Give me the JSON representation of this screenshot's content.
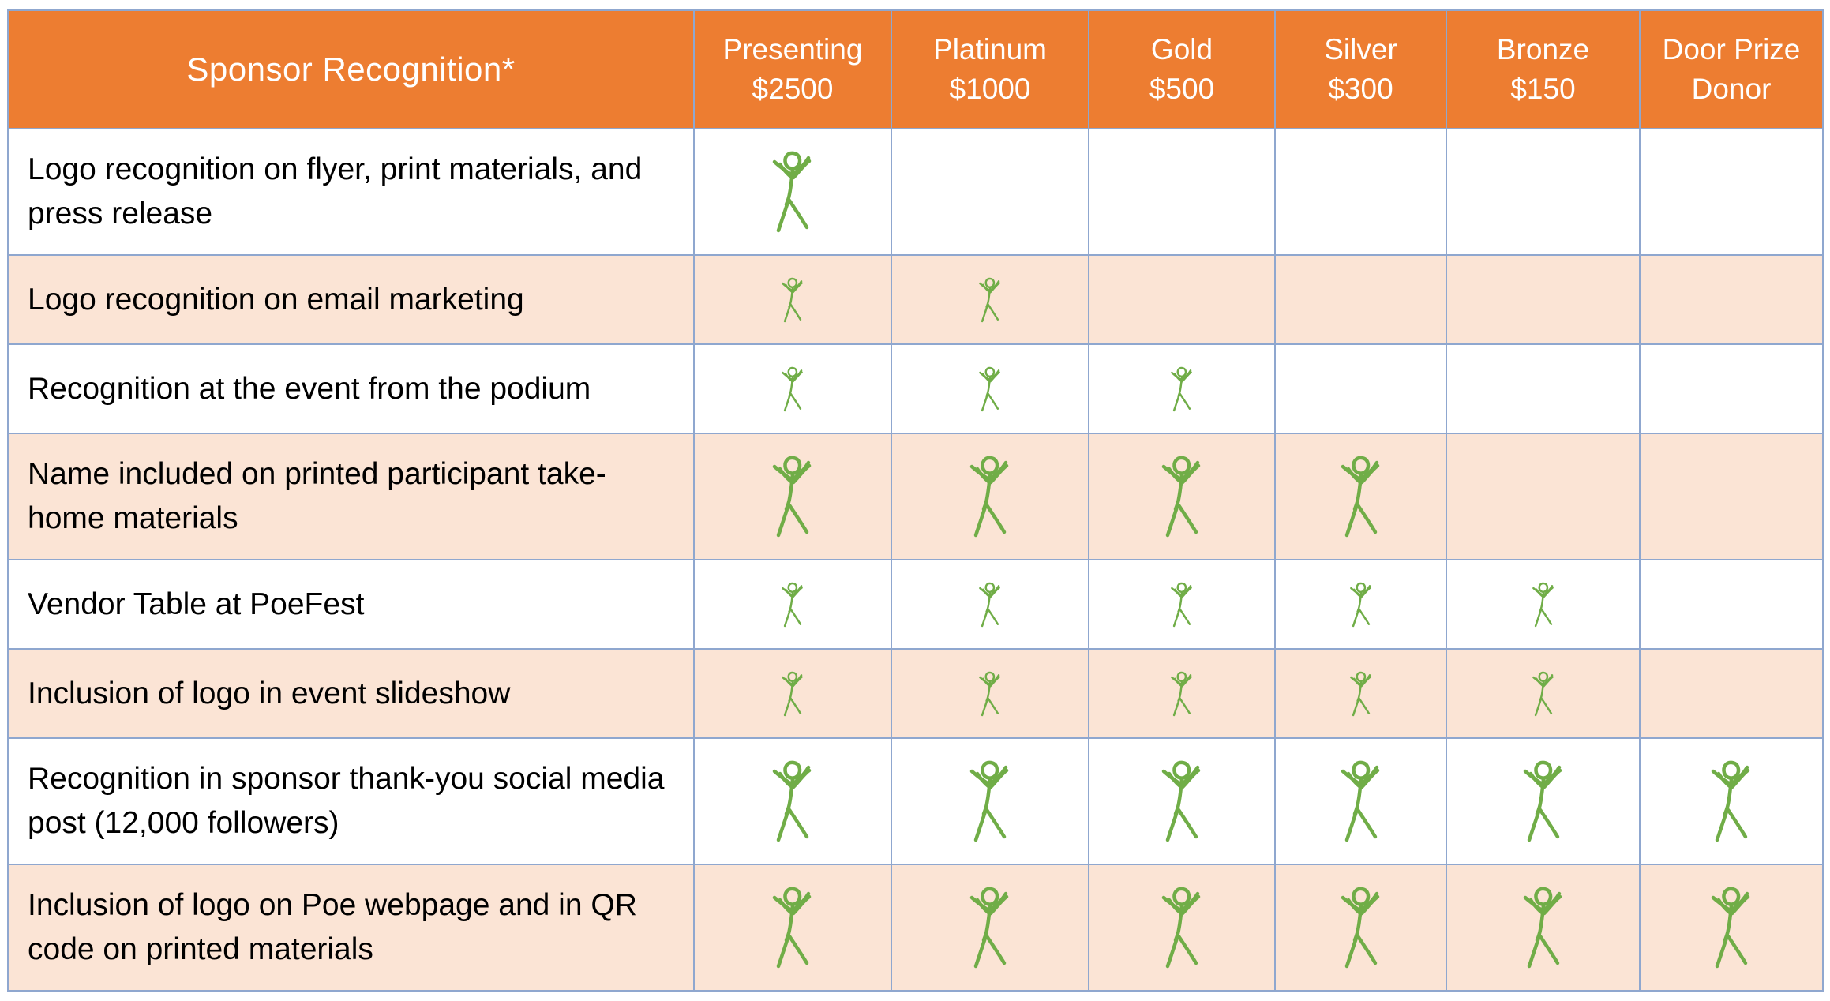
{
  "table": {
    "title": "Sponsor Recognition*",
    "tiers": [
      {
        "line1": "Presenting",
        "line2": "$2500"
      },
      {
        "line1": "Platinum",
        "line2": "$1000"
      },
      {
        "line1": "Gold",
        "line2": "$500"
      },
      {
        "line1": "Silver",
        "line2": "$300"
      },
      {
        "line1": "Bronze",
        "line2": "$150"
      },
      {
        "line1": "Door Prize",
        "line2": "Donor"
      }
    ],
    "rows": [
      {
        "label": "Logo recognition on flyer, print materials, and press release",
        "included": [
          true,
          false,
          false,
          false,
          false,
          false
        ],
        "mark_size": "big"
      },
      {
        "label": "Logo recognition on email marketing",
        "included": [
          true,
          true,
          false,
          false,
          false,
          false
        ],
        "mark_size": "small"
      },
      {
        "label": "Recognition at the event from the podium",
        "included": [
          true,
          true,
          true,
          false,
          false,
          false
        ],
        "mark_size": "small"
      },
      {
        "label": "Name included on printed participant take-home materials",
        "included": [
          true,
          true,
          true,
          true,
          false,
          false
        ],
        "mark_size": "big"
      },
      {
        "label": "Vendor Table at PoeFest",
        "included": [
          true,
          true,
          true,
          true,
          true,
          false
        ],
        "mark_size": "small"
      },
      {
        "label": "Inclusion of logo in event slideshow",
        "included": [
          true,
          true,
          true,
          true,
          true,
          false
        ],
        "mark_size": "small"
      },
      {
        "label": "Recognition in sponsor thank-you social media post (12,000 followers)",
        "included": [
          true,
          true,
          true,
          true,
          true,
          true
        ],
        "mark_size": "big"
      },
      {
        "label": "Inclusion of logo on Poe webpage and in QR code on printed materials",
        "included": [
          true,
          true,
          true,
          true,
          true,
          true
        ],
        "mark_size": "big"
      }
    ]
  },
  "colors": {
    "header_bg": "#ed7d31",
    "header_text": "#ffffff",
    "row_alt_bg": "#fbe4d5",
    "border": "#8fa7cf",
    "figure_stroke": "#70ad47"
  },
  "icons": {
    "included_mark": "stick-figure-icon"
  }
}
